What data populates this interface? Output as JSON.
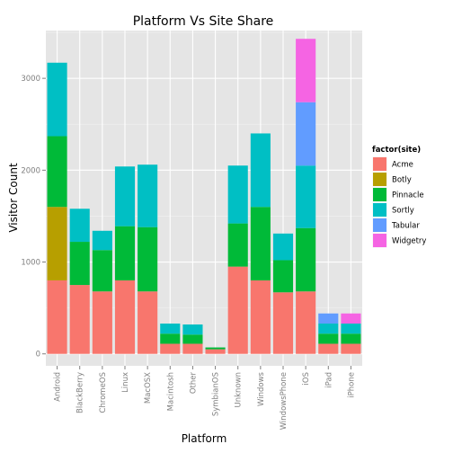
{
  "chart_data": {
    "type": "bar",
    "stacked": true,
    "title": "Platform Vs Site Share",
    "xlabel": "Platform",
    "ylabel": "Visitor Count",
    "ylim": [
      -130,
      3520
    ],
    "yticks": [
      0,
      1000,
      2000,
      3000
    ],
    "grid": true,
    "legend_position": "right",
    "legend_title": "factor(site)",
    "categories": [
      "Android",
      "BlackBerry",
      "ChromeOS",
      "Linux",
      "MacOSX",
      "Macintosh",
      "Other",
      "SymbianOS",
      "Unknown",
      "Windows",
      "WindowsPhone",
      "iOS",
      "iPad",
      "iPhone"
    ],
    "series": [
      {
        "name": "Acme",
        "color": "#F8766D",
        "values": [
          800,
          750,
          680,
          800,
          680,
          110,
          110,
          50,
          950,
          800,
          670,
          680,
          110,
          110
        ]
      },
      {
        "name": "Botly",
        "color": "#B79F00",
        "values": [
          800,
          0,
          0,
          0,
          0,
          0,
          0,
          0,
          0,
          0,
          0,
          0,
          0,
          0
        ]
      },
      {
        "name": "Pinnacle",
        "color": "#00BA38",
        "values": [
          770,
          470,
          450,
          590,
          700,
          110,
          100,
          20,
          470,
          800,
          350,
          690,
          110,
          110
        ]
      },
      {
        "name": "Sortly",
        "color": "#00BFC4",
        "values": [
          800,
          360,
          210,
          650,
          680,
          110,
          110,
          0,
          630,
          800,
          290,
          680,
          110,
          110
        ]
      },
      {
        "name": "Tabular",
        "color": "#619CFF",
        "values": [
          0,
          0,
          0,
          0,
          0,
          0,
          0,
          0,
          0,
          0,
          0,
          690,
          110,
          0
        ]
      },
      {
        "name": "Widgetry",
        "color": "#F564E3",
        "values": [
          0,
          0,
          0,
          0,
          0,
          0,
          0,
          0,
          0,
          0,
          0,
          690,
          0,
          110
        ]
      }
    ]
  }
}
